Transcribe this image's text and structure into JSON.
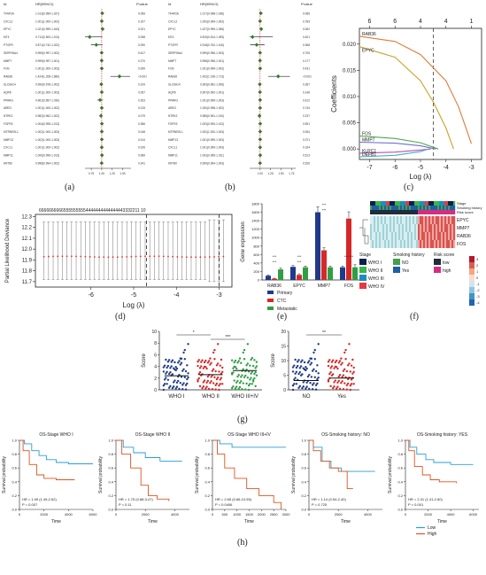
{
  "panel_labels": [
    "(a)",
    "(b)",
    "(c)",
    "(d)",
    "(e)",
    "(f)",
    "(g)",
    "(h)"
  ],
  "chart_data": [
    {
      "id": "a",
      "type": "forest",
      "header": {
        "gene": "Id",
        "hr": "HR(95%CI)",
        "p": "P.value"
      },
      "genes": [
        "TFAP2A",
        "CXCL2",
        "EPYC",
        "MT4",
        "PTGFR",
        "SERPINA4",
        "MMP7",
        "FOS",
        "RAB36",
        "SLC6A14",
        "AQP8",
        "PPARG",
        "AREG",
        "NTRK2",
        "FGFR3",
        "MTRNR2L1",
        "MMP13",
        "CXCL1",
        "MMP11",
        "KRT80"
      ],
      "hr_text": [
        "1.013(0.999-1.027)",
        "1.001(1.000-1.002)",
        "1.021(0.999-1.043)",
        "0.712(0.500-1.013)",
        "0.871(0.742-1.022)",
        "0.999(0.997-1.002)",
        "0.999(0.997-1.001)",
        "1.001(1.000-1.003)",
        "1.424(1.208-1.680)",
        "0.990(0.978-1.002)",
        "1.001(1.000-1.003)",
        "0.961(0.897-1.030)",
        "1.001(1.000-1.002)",
        "0.982(0.962-1.002)",
        "1.004(0.995-1.013)",
        "1.002(1.000-1.003)",
        "1.002(1.000-1.003)",
        "1.001(1.000-1.002)",
        "1.006(0.999-1.013)",
        "0.998(0.994-1.002)"
      ],
      "p_text": [
        "0.056",
        "0.157",
        "0.021",
        "0.058",
        "0.090",
        "0.617",
        "0.270",
        "0.099",
        "<0.001",
        "0.109",
        "0.057",
        "0.263",
        "0.015",
        "0.079",
        "0.386",
        "0.048",
        "0.014",
        "0.026",
        "0.089",
        "0.341"
      ],
      "hr": [
        1.013,
        1.001,
        1.021,
        0.712,
        0.871,
        0.999,
        0.999,
        1.001,
        1.424,
        0.99,
        1.001,
        0.961,
        1.001,
        0.982,
        1.004,
        1.002,
        1.002,
        1.001,
        1.006,
        0.998
      ],
      "lo": [
        0.999,
        1.0,
        0.999,
        0.5,
        0.742,
        0.997,
        0.997,
        1.0,
        1.208,
        0.978,
        1.0,
        0.897,
        1.0,
        0.962,
        0.995,
        1.0,
        1.0,
        1.0,
        0.999,
        0.994
      ],
      "hi": [
        1.027,
        1.002,
        1.043,
        1.013,
        1.022,
        1.002,
        1.001,
        1.003,
        1.68,
        1.002,
        1.003,
        1.03,
        1.002,
        1.002,
        1.013,
        1.003,
        1.003,
        1.002,
        1.013,
        1.002
      ],
      "xticks": [
        "0.75",
        "1.00",
        "1.25",
        "1.50"
      ],
      "xlim": [
        0.6,
        1.7
      ],
      "ref": 1
    },
    {
      "id": "b",
      "type": "forest",
      "header": {
        "gene": "Id",
        "hr": "HR(95%CI)",
        "p": "P.value"
      },
      "genes": [
        "TFAP2A",
        "CXCL2",
        "EPYC",
        "MT4",
        "PTGFR",
        "SERPINA4",
        "MMP7",
        "FOS",
        "RAB36",
        "SLC6A14",
        "AQP8",
        "PPARG",
        "AREG",
        "NTRK2",
        "FGFR3",
        "MTRNR2L1",
        "MMP13",
        "CXCL1",
        "MMP11",
        "KRT80"
      ],
      "hr_text": [
        "1.017(0.998-1.036)",
        "1.000(0.999-1.002)",
        "1.027(0.999-1.055)",
        "0.819(0.514-1.305)",
        "0.918(0.762-1.106)",
        "0.999(0.996-1.003)",
        "0.998(0.996-1.001)",
        "1.001(0.999-1.002)",
        "1.432(1.196-1.713)",
        "0.993(0.981-1.006)",
        "0.997(0.992-1.001)",
        "1.001(0.999-1.003)",
        "1.000(0.998-1.002)",
        "0.985(0.961-1.010)",
        "1.003(0.993-1.012)",
        "1.002(1.000-1.003)",
        "1.001(0.999-1.003)",
        "1.001(0.999-1.003)",
        "1.003(0.995-1.011)",
        "0.999(0.994-1.003)"
      ],
      "p_text": [
        "0.085",
        "0.783",
        "0.062",
        "0.401",
        "0.368",
        "0.705",
        "0.177",
        "0.431",
        "<0.001",
        "0.287",
        "0.146",
        "0.612",
        "0.744",
        "0.237",
        "0.591",
        "0.054",
        "0.371",
        "0.194",
        "0.513",
        "0.526"
      ],
      "hr": [
        1.017,
        1.0,
        1.027,
        0.819,
        0.918,
        0.999,
        0.998,
        1.001,
        1.432,
        0.993,
        0.997,
        1.001,
        1.0,
        0.985,
        1.003,
        1.002,
        1.001,
        1.001,
        1.003,
        0.999
      ],
      "lo": [
        0.998,
        0.999,
        0.999,
        0.514,
        0.762,
        0.996,
        0.996,
        0.999,
        1.196,
        0.981,
        0.992,
        0.999,
        0.998,
        0.961,
        0.993,
        1.0,
        0.999,
        0.999,
        0.995,
        0.994
      ],
      "hi": [
        1.036,
        1.002,
        1.055,
        1.305,
        1.106,
        1.003,
        1.001,
        1.002,
        1.713,
        1.006,
        1.001,
        1.003,
        1.002,
        1.01,
        1.012,
        1.003,
        1.003,
        1.003,
        1.011,
        1.003
      ],
      "xticks": [
        "1.00",
        "1.25",
        "1.50",
        "1.75"
      ],
      "xlim": [
        0.75,
        1.85
      ],
      "ref": 1
    },
    {
      "id": "c",
      "type": "line",
      "xlabel": "Log (λ)",
      "ylabel": "Coefficients",
      "xticks": [
        "-7",
        "-6",
        "-5",
        "-4",
        "-3"
      ],
      "xlim": [
        -7.4,
        -2.6
      ],
      "yticks": [
        "0.000",
        "0.005",
        "0.010",
        "0.015",
        "0.020"
      ],
      "ylim": [
        -0.002,
        0.023
      ],
      "top_ticks": [
        "6",
        "6",
        "4",
        "4",
        "1"
      ],
      "vline": -4.5,
      "series": [
        {
          "name": "RAB36",
          "color": "#e07b39",
          "points": [
            [
              -7.4,
              0.0215
            ],
            [
              -6,
              0.0205
            ],
            [
              -5,
              0.018
            ],
            [
              -4,
              0.013
            ],
            [
              -3.5,
              0.008
            ],
            [
              -3,
              0.001
            ]
          ]
        },
        {
          "name": "EPYC",
          "color": "#c9a227",
          "points": [
            [
              -7.4,
              0.0195
            ],
            [
              -6,
              0.0175
            ],
            [
              -5,
              0.013
            ],
            [
              -4.5,
              0.009
            ],
            [
              -4,
              0.004
            ],
            [
              -3.7,
              0.0
            ]
          ]
        },
        {
          "name": "FOS",
          "color": "#4fa84f",
          "points": [
            [
              -7.4,
              0.0025
            ],
            [
              -6,
              0.002
            ],
            [
              -5,
              0.0012
            ],
            [
              -4.3,
              0.0
            ]
          ]
        },
        {
          "name": "MMP7",
          "color": "#6f6fd0",
          "points": [
            [
              -7.4,
              0.0013
            ],
            [
              -6,
              0.0011
            ],
            [
              -5,
              0.0006
            ],
            [
              -4.4,
              0.0
            ]
          ]
        },
        {
          "name": "KLRC1",
          "color": "#b84bc2",
          "points": [
            [
              -7.4,
              -0.0008
            ],
            [
              -6,
              -0.0006
            ],
            [
              -5,
              -0.0002
            ],
            [
              -4.6,
              0.0
            ]
          ]
        },
        {
          "name": "DEFB1",
          "color": "#3bb3b3",
          "points": [
            [
              -7.4,
              -0.0015
            ],
            [
              -6,
              -0.0012
            ],
            [
              -5,
              -0.0005
            ],
            [
              -4.7,
              0.0
            ]
          ]
        }
      ]
    },
    {
      "id": "d",
      "type": "errorbar",
      "xlabel": "Log (λ)",
      "ylabel": "Partial Likelihood Deviance",
      "yticks": [
        "11.7",
        "11.8",
        "11.9",
        "12.0",
        "12.1",
        "12.2",
        "12.3"
      ],
      "ylim": [
        11.65,
        12.32
      ],
      "xticks": [
        "-6",
        "-5",
        "-4",
        "-3"
      ],
      "xlim": [
        -7.3,
        -2.7
      ],
      "top_label": "66666666665555555554444444444444443332211 10",
      "n_points": 40,
      "mean_y": 11.93,
      "lo_y": 11.72,
      "hi_y": 12.25,
      "vlines": [
        -4.7,
        -3.0
      ]
    },
    {
      "id": "e",
      "type": "bar",
      "ylabel": "Gene expression",
      "categories": [
        "RAB36",
        "EPYC",
        "MMP7",
        "FOS"
      ],
      "yticks": [
        "0",
        "200",
        "400",
        "600",
        "800",
        "1000",
        "1200",
        "1400",
        "1600",
        "1800"
      ],
      "ylim": [
        0,
        1800
      ],
      "series": [
        {
          "name": "Primary",
          "color": "#1f3a8a",
          "values": [
            100,
            310,
            1600,
            300
          ],
          "err": [
            20,
            30,
            130,
            30
          ]
        },
        {
          "name": "CTC",
          "color": "#d62828",
          "values": [
            30,
            120,
            700,
            1450
          ],
          "err": [
            10,
            25,
            60,
            160
          ]
        },
        {
          "name": "Metastatic",
          "color": "#2f9e44",
          "values": [
            250,
            300,
            300,
            300
          ],
          "err": [
            30,
            30,
            30,
            60
          ]
        }
      ],
      "significance": [
        "***",
        "***",
        "***",
        "***",
        "***",
        "***",
        "*** ***"
      ]
    },
    {
      "id": "f",
      "type": "heatmap",
      "rows": [
        "EPYC",
        "MMP7",
        "RAB36",
        "FOS"
      ],
      "top_tracks": [
        "Stage",
        "Smoking history",
        "Risk score"
      ],
      "legend": {
        "stage_title": "Stage",
        "stage": [
          {
            "label": "WHO I",
            "color": "#0b1f4e"
          },
          {
            "label": "WHO II",
            "color": "#39b54a"
          },
          {
            "label": "WHO III",
            "color": "#1a8fb8"
          },
          {
            "label": "WHO IV",
            "color": "#e63946"
          }
        ],
        "smoke_title": "Smoking history",
        "smoke": [
          {
            "label": "NO",
            "color": "#45a049"
          },
          {
            "label": "Yes",
            "color": "#1e5fa8"
          }
        ],
        "risk_title": "Risk score",
        "risk": [
          {
            "label": "low",
            "color": "#1f2d3d"
          },
          {
            "label": "high",
            "color": "#d62d83"
          }
        ],
        "scale": [
          "3",
          "2",
          "1",
          "0",
          "-1",
          "-2",
          "-3",
          "-4"
        ]
      }
    },
    {
      "id": "g1",
      "type": "scatter",
      "ylabel": "Score",
      "categories": [
        "WHO I",
        "WHO II",
        "WHO III+IV"
      ],
      "colors": [
        "#1f3a8a",
        "#d62828",
        "#2f9e44"
      ],
      "yticks": [
        "0",
        "2",
        "4",
        "6",
        "8",
        "10"
      ],
      "ylim": [
        0,
        10
      ],
      "means": [
        2.4,
        2.6,
        3.3
      ],
      "sig": [
        "*",
        "***"
      ]
    },
    {
      "id": "g2",
      "type": "scatter",
      "ylabel": "Score",
      "categories": [
        "NO",
        "Yes"
      ],
      "colors": [
        "#1f3a8a",
        "#d62828"
      ],
      "yticks": [
        "0",
        "5",
        "10",
        "15",
        "20"
      ],
      "ylim": [
        0,
        20
      ],
      "means": [
        3.2,
        4.0
      ],
      "sig": [
        "**"
      ]
    },
    {
      "id": "h",
      "type": "survival",
      "legend": [
        {
          "name": "Low",
          "color": "#2a9fd6"
        },
        {
          "name": "High",
          "color": "#e0531f"
        }
      ],
      "plots": [
        {
          "title": "OS-Stage WHO I",
          "hr": "HR = 1.99 (1.49-2.62)",
          "p": "P = 0.007",
          "xticks": [
            "0",
            "2000",
            "4000",
            "6000"
          ],
          "xmax": 6000,
          "low": [
            [
              0,
              1
            ],
            [
              400,
              0.95
            ],
            [
              1000,
              0.85
            ],
            [
              1600,
              0.78
            ],
            [
              2200,
              0.72
            ],
            [
              3000,
              0.68
            ],
            [
              4000,
              0.66
            ],
            [
              6000,
              0.66
            ]
          ],
          "high": [
            [
              0,
              1
            ],
            [
              300,
              0.85
            ],
            [
              800,
              0.65
            ],
            [
              1400,
              0.5
            ],
            [
              2000,
              0.45
            ],
            [
              3000,
              0.43
            ],
            [
              4500,
              0.43
            ]
          ]
        },
        {
          "title": "OS-Stage WHO II",
          "hr": "HR = 1.75 (0.88-3.47)",
          "p": "P = 0.11",
          "xticks": [
            "0",
            "2000",
            "4000"
          ],
          "xmax": 5000,
          "low": [
            [
              0,
              1
            ],
            [
              500,
              0.9
            ],
            [
              1200,
              0.82
            ],
            [
              2000,
              0.75
            ],
            [
              3000,
              0.7
            ],
            [
              4500,
              0.7
            ]
          ],
          "high": [
            [
              0,
              1
            ],
            [
              400,
              0.8
            ],
            [
              1000,
              0.6
            ],
            [
              1700,
              0.35
            ],
            [
              2200,
              0.2
            ],
            [
              2800,
              0.15
            ],
            [
              3600,
              0.12
            ]
          ]
        },
        {
          "title": "OS-Stage WHO III+IV",
          "hr": "HR = 2.65 (0.66-10.55)",
          "p": "P = 0.0406",
          "xticks": [
            "0",
            "500",
            "1000",
            "1500",
            "2000",
            "2500",
            "3000"
          ],
          "xmax": 3000,
          "low": [
            [
              0,
              1
            ],
            [
              300,
              0.95
            ],
            [
              800,
              0.9
            ],
            [
              1500,
              0.9
            ],
            [
              2200,
              0.9
            ],
            [
              3000,
              0.9
            ]
          ],
          "high": [
            [
              0,
              1
            ],
            [
              200,
              0.8
            ],
            [
              500,
              0.6
            ],
            [
              900,
              0.45
            ],
            [
              1400,
              0.3
            ],
            [
              1900,
              0.2
            ],
            [
              2500,
              0.1
            ],
            [
              2800,
              0
            ]
          ]
        },
        {
          "title": "OS-Smoking history: NO",
          "hr": "HR = 1.14 (0.54-2.40)",
          "p": "P = 0.725",
          "xticks": [
            "0",
            "2000",
            "4000"
          ],
          "xmax": 5000,
          "low": [
            [
              0,
              1
            ],
            [
              300,
              0.9
            ],
            [
              900,
              0.7
            ],
            [
              1500,
              0.6
            ],
            [
              2200,
              0.55
            ],
            [
              3500,
              0.55
            ],
            [
              4500,
              0.55
            ]
          ],
          "high": [
            [
              0,
              1
            ],
            [
              300,
              0.85
            ],
            [
              800,
              0.7
            ],
            [
              1400,
              0.6
            ],
            [
              2000,
              0.55
            ],
            [
              2600,
              0.3
            ],
            [
              3000,
              0.3
            ]
          ]
        },
        {
          "title": "OS-Smoking history: YES",
          "hr": "HR = 2.31 (1.41-2.60)",
          "p": "P < 0.001",
          "xticks": [
            "0",
            "2000",
            "4000",
            "6000"
          ],
          "xmax": 6500,
          "low": [
            [
              0,
              1
            ],
            [
              400,
              0.9
            ],
            [
              1000,
              0.8
            ],
            [
              1800,
              0.72
            ],
            [
              2500,
              0.68
            ],
            [
              4000,
              0.65
            ],
            [
              6000,
              0.65
            ]
          ],
          "high": [
            [
              0,
              1
            ],
            [
              300,
              0.85
            ],
            [
              800,
              0.62
            ],
            [
              1500,
              0.5
            ],
            [
              2200,
              0.43
            ],
            [
              3000,
              0.4
            ],
            [
              4500,
              0.38
            ]
          ]
        }
      ],
      "ylabel": "Survival probability",
      "xlabel": "Time"
    }
  ]
}
